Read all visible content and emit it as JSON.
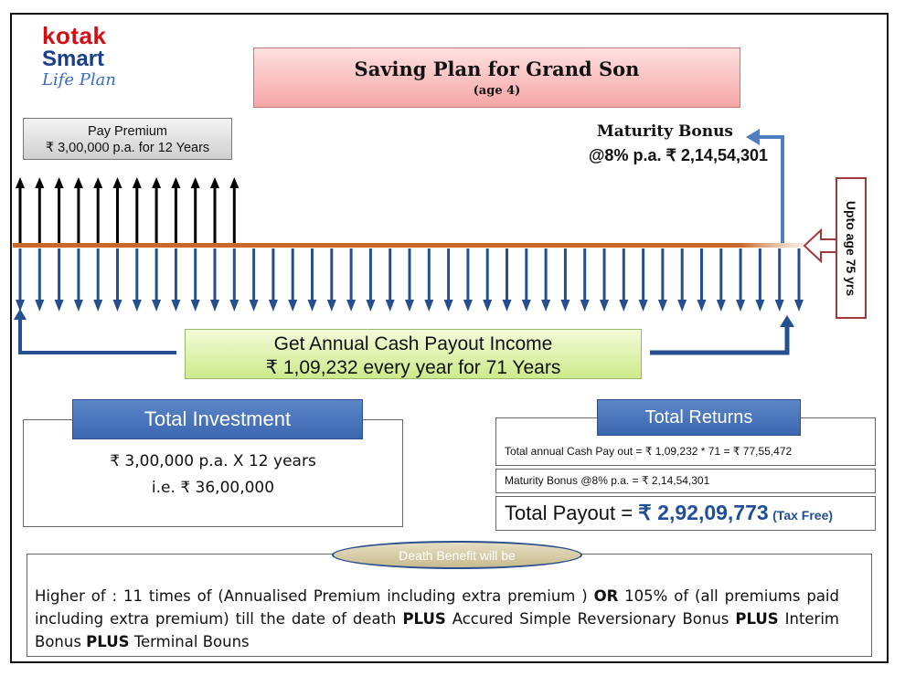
{
  "logo": {
    "line1": "kotak",
    "line2": "Smart",
    "line3": "Life Plan"
  },
  "title": {
    "main": "Saving Plan for Grand Son",
    "sub": "(age 4)"
  },
  "pay_premium": {
    "line1": "Pay Premium",
    "line2": "₹ 3,00,000 p.a. for 12 Years"
  },
  "maturity": {
    "line1": "Maturity Bonus",
    "line2": "@8% p.a. ₹ 2,14,54,301"
  },
  "age_label": "Upto age 75 yrs",
  "payout": {
    "line1": "Get Annual Cash Payout Income",
    "line2": "₹  1,09,232 every year for 71 Years"
  },
  "timeline": {
    "premium_years": 12,
    "payout_arrows": 41
  },
  "investment": {
    "heading": "Total Investment",
    "line1": "₹ 3,00,000 p.a.  X  12 years",
    "line2": "i.e. ₹ 36,00,000"
  },
  "returns": {
    "heading": "Total Returns",
    "cash_payout": "Total annual Cash Pay out = ₹ 1,09,232 * 71 = ₹ 77,55,472",
    "maturity_bonus": "Maturity Bonus @8% p.a. = ₹ 2,14,54,301",
    "total_label": "Total Payout = ",
    "total_amount": "₹ 2,92,09,773",
    "tax_free": "(Tax Free)"
  },
  "death_benefit": {
    "heading": "Death Benefit will be",
    "t1": "Higher of : 11 times of (Annualised  Premium including extra premium ) ",
    "b1": "OR",
    "t2": " 105% of (all premiums paid including extra premium) till the date of death ",
    "b2": "PLUS",
    "t3": " Accured Simple Reversionary Bonus ",
    "b3": "PLUS",
    "t4": " Interim Bonus ",
    "b4": "PLUS",
    "t5": " Terminal Bouns"
  },
  "colors": {
    "arrow_blue": "#254f8e",
    "timeline": "#c8682b",
    "premium_arrow": "#000000",
    "accent_red": "#d40f14"
  }
}
